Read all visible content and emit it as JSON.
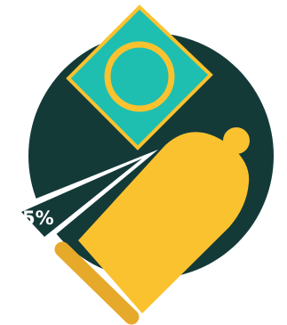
{
  "callout": {
    "percentage_text": "5%"
  },
  "colors": {
    "background_circle": "#143a38",
    "wrapper_fill": "#1ebfb0",
    "ring_and_outline": "#fbc22f",
    "condom_body": "#fbc22f",
    "condom_rim": "#e6a92a",
    "callout_white": "#ffffff",
    "callout_text": "#ffffff"
  },
  "icons": {
    "wrapper": "condom-wrapper-icon",
    "condom": "condom-icon",
    "callout": "callout-pointer-icon"
  }
}
